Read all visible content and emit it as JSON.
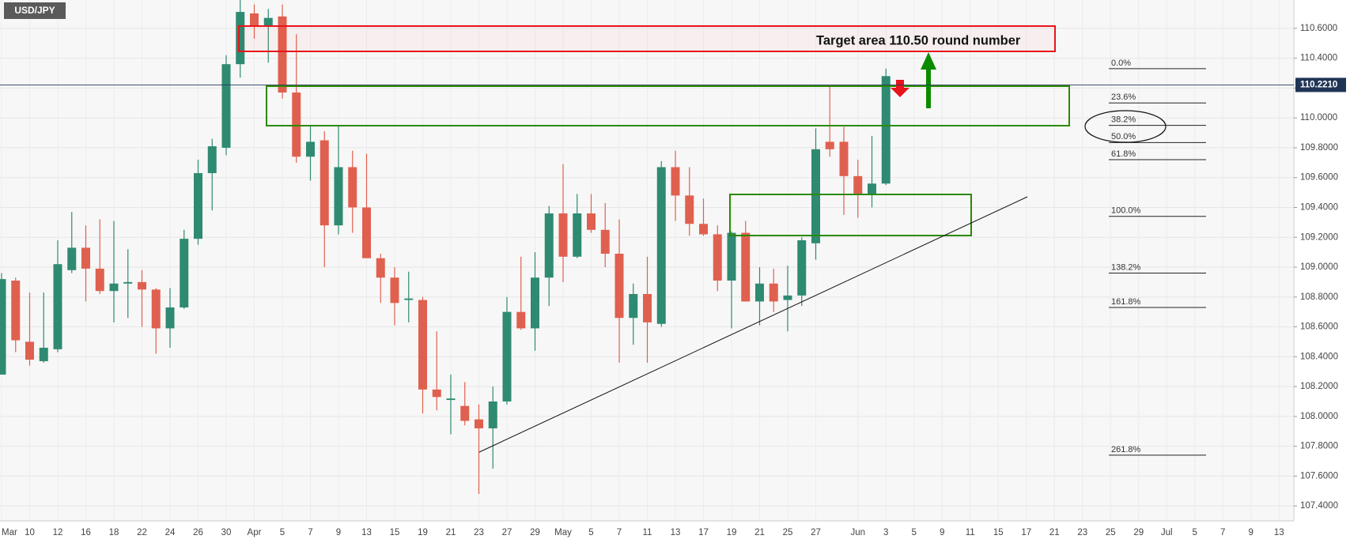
{
  "chart_data": {
    "type": "candlestick",
    "title": "USD/JPY",
    "annotation": "Target area 110.50 round number",
    "categories": [
      "Mar",
      null,
      "10",
      null,
      "12",
      null,
      "16",
      null,
      "18",
      null,
      "22",
      null,
      "24",
      null,
      "26",
      null,
      "30",
      null,
      "Apr",
      null,
      "5",
      null,
      "7",
      null,
      "9",
      null,
      "13",
      null,
      "15",
      null,
      "19",
      null,
      "21",
      null,
      "23",
      null,
      "27",
      null,
      "29",
      null,
      "May",
      null,
      "5",
      null,
      "7",
      null,
      "11",
      null,
      "13",
      null,
      "17",
      null,
      "19",
      null,
      "21",
      null,
      "25",
      null,
      "27",
      null,
      null,
      "Jun",
      null,
      "3",
      null,
      "5",
      null,
      "9",
      null,
      "11",
      null,
      "15",
      null,
      "17",
      null,
      "21",
      null,
      "23",
      null,
      "25",
      null,
      "29",
      null,
      "Jul",
      null,
      "5",
      null,
      "7",
      null,
      "9",
      null,
      "13"
    ],
    "open": [
      108.28,
      108.91,
      108.5,
      108.37,
      108.45,
      108.98,
      109.13,
      108.99,
      108.84,
      108.89,
      108.9,
      108.85,
      108.59,
      108.73,
      109.19,
      109.63,
      109.8,
      110.36,
      110.7,
      110.62,
      110.68,
      110.17,
      109.74,
      109.85,
      109.28,
      109.67,
      109.4,
      109.06,
      108.93,
      108.78,
      108.78,
      108.18,
      108.11,
      108.07,
      107.98,
      107.92,
      108.1,
      108.7,
      108.59,
      108.93,
      109.36,
      109.07,
      109.36,
      109.25,
      109.09,
      108.66,
      108.82,
      108.62,
      109.67,
      109.48,
      109.29,
      109.22,
      108.91,
      109.23,
      108.77,
      108.89,
      108.78,
      108.81,
      109.16,
      109.84,
      109.84,
      109.61,
      109.49,
      109.56,
      null,
      null,
      null,
      null,
      null,
      null,
      null,
      null,
      null,
      null,
      null,
      null,
      null,
      null,
      null,
      null,
      null,
      null,
      null,
      null,
      null,
      null,
      null,
      null,
      null,
      null,
      null,
      null
    ],
    "high": [
      108.96,
      108.93,
      108.83,
      108.83,
      109.18,
      109.37,
      109.28,
      109.32,
      109.31,
      109.12,
      108.98,
      108.86,
      108.86,
      109.25,
      109.72,
      109.86,
      110.42,
      110.79,
      110.76,
      110.73,
      110.76,
      110.56,
      109.95,
      109.91,
      109.95,
      109.78,
      109.76,
      109.09,
      109.0,
      108.97,
      108.8,
      108.57,
      108.28,
      108.23,
      108.08,
      108.2,
      108.8,
      109.07,
      109.1,
      109.41,
      109.69,
      109.49,
      109.49,
      109.43,
      109.32,
      108.89,
      109.07,
      109.71,
      109.78,
      109.67,
      109.46,
      109.28,
      109.24,
      109.31,
      109.0,
      108.99,
      109.01,
      109.2,
      109.93,
      110.21,
      109.94,
      109.72,
      109.88,
      110.33,
      null,
      null,
      null,
      null,
      null,
      null,
      null,
      null,
      null,
      null,
      null,
      null,
      null,
      null,
      null,
      null,
      null,
      null,
      null,
      null,
      null,
      null,
      null,
      null,
      null,
      null,
      null,
      null
    ],
    "low": [
      108.28,
      108.43,
      108.34,
      108.36,
      108.43,
      108.96,
      108.77,
      108.82,
      108.63,
      108.66,
      108.6,
      108.42,
      108.46,
      108.72,
      109.15,
      109.38,
      109.75,
      110.27,
      110.53,
      110.37,
      110.13,
      109.7,
      109.58,
      109.0,
      109.22,
      109.23,
      109.06,
      108.76,
      108.61,
      108.63,
      108.02,
      108.04,
      107.88,
      107.94,
      107.48,
      107.65,
      108.08,
      108.58,
      108.44,
      108.74,
      108.9,
      109.06,
      109.23,
      109.0,
      108.36,
      108.48,
      108.36,
      108.6,
      109.31,
      109.21,
      109.21,
      108.84,
      108.59,
      108.77,
      108.61,
      108.7,
      108.57,
      108.74,
      109.05,
      109.74,
      109.35,
      109.33,
      109.4,
      109.55,
      null,
      null,
      null,
      null,
      null,
      null,
      null,
      null,
      null,
      null,
      null,
      null,
      null,
      null,
      null,
      null,
      null,
      null,
      null,
      null,
      null,
      null,
      null,
      null,
      null,
      null,
      null,
      null
    ],
    "close": [
      108.92,
      108.51,
      108.38,
      108.46,
      109.02,
      109.13,
      108.99,
      108.84,
      108.89,
      108.9,
      108.85,
      108.59,
      108.73,
      109.19,
      109.63,
      109.81,
      110.36,
      110.71,
      110.62,
      110.67,
      110.17,
      109.74,
      109.84,
      109.28,
      109.67,
      109.4,
      109.06,
      108.93,
      108.76,
      108.79,
      108.18,
      108.13,
      108.12,
      107.97,
      107.92,
      108.1,
      108.7,
      108.59,
      108.93,
      109.36,
      109.07,
      109.36,
      109.25,
      109.09,
      108.66,
      108.82,
      108.63,
      109.67,
      109.48,
      109.29,
      109.22,
      108.91,
      109.23,
      108.77,
      108.89,
      108.77,
      108.81,
      109.18,
      109.79,
      109.79,
      109.61,
      109.49,
      109.56,
      110.28,
      null,
      null,
      null,
      null,
      null,
      null,
      null,
      null,
      null,
      null,
      null,
      null,
      null,
      null,
      null,
      null,
      null,
      null,
      null,
      null,
      null,
      null,
      null,
      null,
      null,
      null,
      null,
      null
    ],
    "colors": {
      "up": "#2f8a72",
      "down": "#e0604f"
    },
    "ylim": [
      107.3,
      110.79
    ],
    "yticks": [
      {
        "value": 107.4,
        "label": "107.4000"
      },
      {
        "value": 107.6,
        "label": "107.6000"
      },
      {
        "value": 107.8,
        "label": "107.8000"
      },
      {
        "value": 108.0,
        "label": "108.0000"
      },
      {
        "value": 108.2,
        "label": "108.2000"
      },
      {
        "value": 108.4,
        "label": "108.4000"
      },
      {
        "value": 108.6,
        "label": "108.6000"
      },
      {
        "value": 108.8,
        "label": "108.8000"
      },
      {
        "value": 109.0,
        "label": "109.0000"
      },
      {
        "value": 109.2,
        "label": "109.2000"
      },
      {
        "value": 109.4,
        "label": "109.4000"
      },
      {
        "value": 109.6,
        "label": "109.6000"
      },
      {
        "value": 109.8,
        "label": "109.8000"
      },
      {
        "value": 110.0,
        "label": "110.0000"
      },
      {
        "value": 110.2,
        "label": "110.2000"
      },
      {
        "value": 110.4,
        "label": "110.4000"
      },
      {
        "value": 110.6,
        "label": "110.6000"
      }
    ],
    "last_price": {
      "value": 110.221,
      "label": "110.2210"
    },
    "fib_levels": [
      {
        "label": "0.0%",
        "price": 110.33
      },
      {
        "label": "23.6%",
        "price": 110.1
      },
      {
        "label": "38.2%",
        "price": 109.95
      },
      {
        "label": "50.0%",
        "price": 109.835
      },
      {
        "label": "61.8%",
        "price": 109.72
      },
      {
        "label": "100.0%",
        "price": 109.34
      },
      {
        "label": "138.2%",
        "price": 108.96
      },
      {
        "label": "161.8%",
        "price": 108.73
      },
      {
        "label": "261.8%",
        "price": 107.74
      }
    ],
    "grid": true
  }
}
